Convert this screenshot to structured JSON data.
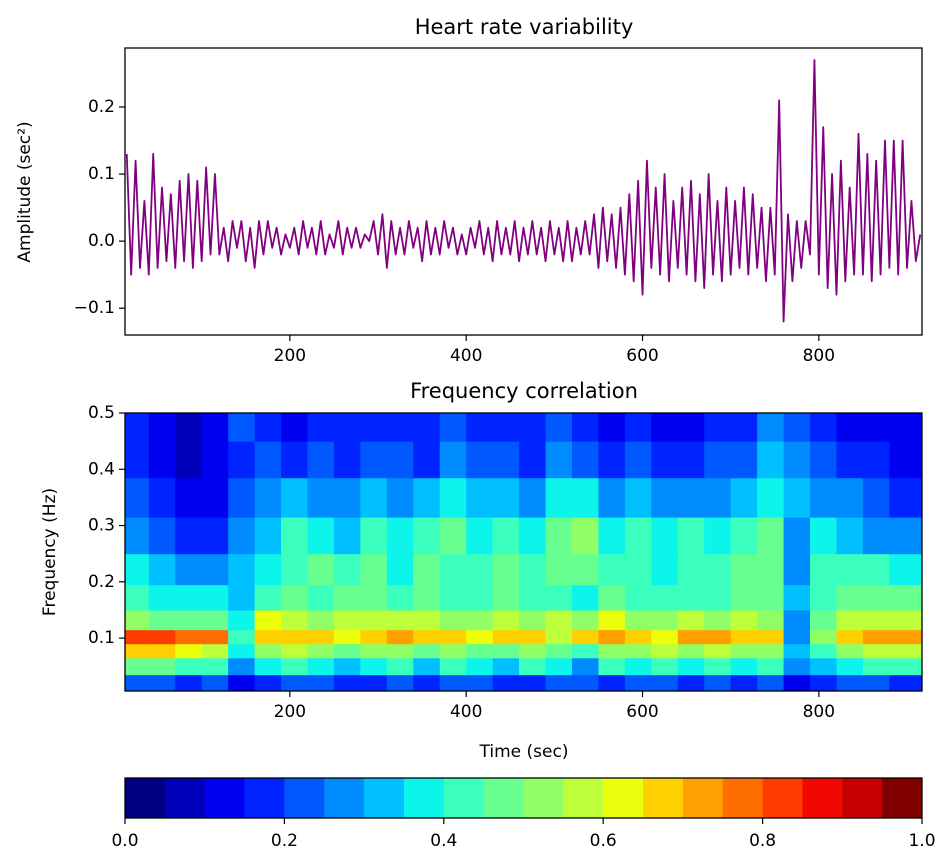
{
  "chart_data": [
    {
      "type": "line",
      "title": "Heart rate variability",
      "y_label": "Amplitude (sec²)",
      "color": "#800080",
      "xlim": [
        13,
        917
      ],
      "ylim": [
        -0.14,
        0.288
      ],
      "xticks": [
        200,
        400,
        600,
        800
      ],
      "yticks": [
        {
          "value": -0.1,
          "label": "−0.1"
        },
        {
          "value": 0,
          "label": "0.0"
        },
        0.1,
        0.2
      ],
      "x": [
        15,
        20,
        25,
        30,
        35,
        40,
        45,
        50,
        55,
        60,
        65,
        70,
        75,
        80,
        85,
        90,
        95,
        100,
        105,
        110,
        115,
        120,
        125,
        130,
        135,
        140,
        145,
        150,
        155,
        160,
        165,
        170,
        175,
        180,
        185,
        190,
        195,
        200,
        205,
        210,
        215,
        220,
        225,
        230,
        235,
        240,
        245,
        250,
        255,
        260,
        265,
        270,
        275,
        280,
        285,
        290,
        295,
        300,
        305,
        310,
        315,
        320,
        325,
        330,
        335,
        340,
        345,
        350,
        355,
        360,
        365,
        370,
        375,
        380,
        385,
        390,
        395,
        400,
        405,
        410,
        415,
        420,
        425,
        430,
        435,
        440,
        445,
        450,
        455,
        460,
        465,
        470,
        475,
        480,
        485,
        490,
        495,
        500,
        505,
        510,
        515,
        520,
        525,
        530,
        535,
        540,
        545,
        550,
        555,
        560,
        565,
        570,
        575,
        580,
        585,
        590,
        595,
        600,
        605,
        610,
        615,
        620,
        625,
        630,
        635,
        640,
        645,
        650,
        655,
        660,
        665,
        670,
        675,
        680,
        685,
        690,
        695,
        700,
        705,
        710,
        715,
        720,
        725,
        730,
        735,
        740,
        745,
        750,
        755,
        760,
        765,
        770,
        775,
        780,
        785,
        790,
        795,
        800,
        805,
        810,
        815,
        820,
        825,
        830,
        835,
        840,
        845,
        850,
        855,
        860,
        865,
        870,
        875,
        880,
        885,
        890,
        895,
        900,
        905,
        910,
        915
      ],
      "values": [
        0.13,
        -0.05,
        0.12,
        -0.04,
        0.06,
        -0.05,
        0.13,
        -0.04,
        0.08,
        -0.03,
        0.07,
        -0.04,
        0.09,
        -0.03,
        0.1,
        -0.04,
        0.09,
        -0.03,
        0.11,
        -0.02,
        0.1,
        -0.02,
        0.02,
        -0.03,
        0.03,
        -0.01,
        0.03,
        -0.03,
        0.02,
        -0.04,
        0.03,
        -0.02,
        0.03,
        -0.01,
        0.02,
        -0.02,
        0.01,
        -0.01,
        0.02,
        -0.02,
        0.03,
        -0.01,
        0.02,
        -0.02,
        0.03,
        -0.02,
        0.01,
        -0.01,
        0.03,
        -0.02,
        0.02,
        -0.01,
        0.02,
        -0.01,
        0.01,
        0.0,
        0.03,
        -0.02,
        0.04,
        -0.04,
        0.03,
        -0.02,
        0.02,
        -0.02,
        0.03,
        -0.01,
        0.02,
        -0.03,
        0.03,
        -0.02,
        0.02,
        -0.02,
        0.03,
        -0.01,
        0.02,
        -0.02,
        0.01,
        -0.02,
        0.02,
        -0.01,
        0.03,
        -0.02,
        0.02,
        -0.03,
        0.03,
        -0.02,
        0.02,
        -0.02,
        0.03,
        -0.03,
        0.02,
        -0.02,
        0.03,
        -0.02,
        0.02,
        -0.03,
        0.03,
        -0.02,
        0.02,
        -0.03,
        0.03,
        -0.03,
        0.02,
        -0.02,
        0.03,
        -0.02,
        0.04,
        -0.04,
        0.05,
        -0.03,
        0.04,
        -0.04,
        0.05,
        -0.05,
        0.07,
        -0.06,
        0.09,
        -0.08,
        0.12,
        -0.04,
        0.08,
        -0.05,
        0.1,
        -0.06,
        0.06,
        -0.04,
        0.08,
        -0.05,
        0.09,
        -0.06,
        0.07,
        -0.07,
        0.1,
        -0.05,
        0.06,
        -0.06,
        0.08,
        -0.05,
        0.06,
        -0.04,
        0.08,
        -0.05,
        0.07,
        -0.04,
        0.05,
        -0.06,
        0.05,
        -0.05,
        0.21,
        -0.12,
        0.04,
        -0.06,
        0.03,
        -0.04,
        0.03,
        -0.02,
        0.27,
        -0.05,
        0.17,
        -0.07,
        0.1,
        -0.08,
        0.12,
        -0.06,
        0.08,
        -0.05,
        0.16,
        -0.05,
        0.13,
        -0.06,
        0.12,
        -0.05,
        0.15,
        -0.04,
        0.15,
        -0.05,
        0.15,
        -0.04,
        0.06,
        -0.03,
        0.01
      ]
    },
    {
      "type": "contour",
      "title": "Frequency correlation",
      "x_label": "Time (sec)",
      "y_label": "Frequency (Hz)",
      "xlim": [
        13,
        917
      ],
      "ylim": [
        0.006,
        0.5
      ],
      "xticks": [
        200,
        400,
        600,
        800
      ],
      "yticks": [
        0.1,
        0.2,
        0.3,
        0.4,
        0.5
      ],
      "x": [
        25,
        55,
        85,
        115,
        145,
        175,
        205,
        235,
        265,
        295,
        325,
        355,
        385,
        415,
        445,
        475,
        505,
        535,
        565,
        595,
        625,
        655,
        685,
        715,
        745,
        775,
        805,
        835,
        865,
        895
      ],
      "y": [
        0.02,
        0.05,
        0.08,
        0.1,
        0.13,
        0.17,
        0.22,
        0.28,
        0.35,
        0.42,
        0.48
      ],
      "z": [
        [
          0.25,
          0.22,
          0.2,
          0.25,
          0.15,
          0.2,
          0.25,
          0.22,
          0.18,
          0.2,
          0.25,
          0.2,
          0.22,
          0.25,
          0.2,
          0.18,
          0.22,
          0.25,
          0.2,
          0.22,
          0.25,
          0.2,
          0.22,
          0.2,
          0.25,
          0.15,
          0.2,
          0.22,
          0.25,
          0.2
        ],
        [
          0.5,
          0.5,
          0.45,
          0.45,
          0.3,
          0.4,
          0.45,
          0.4,
          0.35,
          0.4,
          0.45,
          0.35,
          0.45,
          0.4,
          0.35,
          0.45,
          0.4,
          0.3,
          0.45,
          0.4,
          0.45,
          0.4,
          0.45,
          0.4,
          0.45,
          0.3,
          0.35,
          0.4,
          0.45,
          0.45
        ],
        [
          0.7,
          0.7,
          0.65,
          0.6,
          0.4,
          0.55,
          0.6,
          0.55,
          0.5,
          0.55,
          0.55,
          0.5,
          0.55,
          0.5,
          0.5,
          0.55,
          0.5,
          0.45,
          0.55,
          0.55,
          0.6,
          0.55,
          0.6,
          0.55,
          0.55,
          0.35,
          0.45,
          0.55,
          0.6,
          0.6
        ],
        [
          0.85,
          0.85,
          0.8,
          0.8,
          0.45,
          0.7,
          0.7,
          0.7,
          0.65,
          0.7,
          0.75,
          0.7,
          0.7,
          0.65,
          0.7,
          0.7,
          0.6,
          0.7,
          0.75,
          0.7,
          0.65,
          0.75,
          0.75,
          0.7,
          0.7,
          0.3,
          0.55,
          0.7,
          0.75,
          0.75
        ],
        [
          0.55,
          0.5,
          0.5,
          0.5,
          0.4,
          0.65,
          0.6,
          0.55,
          0.6,
          0.6,
          0.6,
          0.6,
          0.55,
          0.55,
          0.6,
          0.55,
          0.6,
          0.55,
          0.65,
          0.55,
          0.55,
          0.6,
          0.55,
          0.6,
          0.55,
          0.3,
          0.5,
          0.6,
          0.6,
          0.6
        ],
        [
          0.45,
          0.4,
          0.4,
          0.4,
          0.35,
          0.45,
          0.5,
          0.45,
          0.5,
          0.5,
          0.45,
          0.5,
          0.45,
          0.45,
          0.5,
          0.45,
          0.45,
          0.4,
          0.5,
          0.45,
          0.45,
          0.45,
          0.45,
          0.5,
          0.5,
          0.35,
          0.45,
          0.5,
          0.5,
          0.5
        ],
        [
          0.4,
          0.35,
          0.3,
          0.3,
          0.35,
          0.4,
          0.45,
          0.5,
          0.45,
          0.5,
          0.4,
          0.5,
          0.45,
          0.45,
          0.5,
          0.45,
          0.5,
          0.5,
          0.45,
          0.45,
          0.4,
          0.45,
          0.45,
          0.5,
          0.5,
          0.3,
          0.45,
          0.45,
          0.45,
          0.4
        ],
        [
          0.3,
          0.25,
          0.2,
          0.2,
          0.3,
          0.35,
          0.45,
          0.4,
          0.35,
          0.45,
          0.4,
          0.45,
          0.5,
          0.4,
          0.45,
          0.4,
          0.5,
          0.55,
          0.4,
          0.45,
          0.4,
          0.45,
          0.4,
          0.45,
          0.5,
          0.3,
          0.4,
          0.35,
          0.3,
          0.3
        ],
        [
          0.25,
          0.2,
          0.15,
          0.15,
          0.25,
          0.3,
          0.35,
          0.3,
          0.3,
          0.35,
          0.3,
          0.35,
          0.4,
          0.35,
          0.35,
          0.3,
          0.4,
          0.4,
          0.3,
          0.35,
          0.3,
          0.3,
          0.3,
          0.35,
          0.4,
          0.35,
          0.3,
          0.3,
          0.25,
          0.2
        ],
        [
          0.2,
          0.15,
          0.1,
          0.12,
          0.2,
          0.25,
          0.2,
          0.25,
          0.2,
          0.25,
          0.25,
          0.2,
          0.3,
          0.25,
          0.25,
          0.2,
          0.3,
          0.25,
          0.2,
          0.25,
          0.2,
          0.2,
          0.25,
          0.25,
          0.35,
          0.3,
          0.25,
          0.2,
          0.2,
          0.15
        ],
        [
          0.2,
          0.15,
          0.1,
          0.15,
          0.25,
          0.2,
          0.15,
          0.2,
          0.2,
          0.2,
          0.2,
          0.2,
          0.25,
          0.2,
          0.2,
          0.2,
          0.25,
          0.2,
          0.15,
          0.2,
          0.15,
          0.15,
          0.2,
          0.2,
          0.3,
          0.25,
          0.2,
          0.15,
          0.15,
          0.15
        ]
      ],
      "levels": [
        0,
        0.05,
        0.1,
        0.15,
        0.2,
        0.25,
        0.3,
        0.35,
        0.4,
        0.45,
        0.5,
        0.55,
        0.6,
        0.65,
        0.7,
        0.75,
        0.8,
        0.85,
        0.9,
        0.95,
        1
      ],
      "colors": [
        "#000080",
        "#0000b8",
        "#0000f1",
        "#0024ff",
        "#0058ff",
        "#008cff",
        "#00c0ff",
        "#0df4eb",
        "#3affbd",
        "#66ff90",
        "#90ff66",
        "#bdff3a",
        "#ebff0d",
        "#ffd000",
        "#ff9f00",
        "#ff6e00",
        "#ff3d00",
        "#f10800",
        "#c60000",
        "#800000"
      ],
      "colorbar_ticks": [
        {
          "value": 0,
          "label": "0.0"
        },
        {
          "value": 0.2,
          "label": "0.2"
        },
        {
          "value": 0.4,
          "label": "0.4"
        },
        {
          "value": 0.6,
          "label": "0.6"
        },
        {
          "value": 0.8,
          "label": "0.8"
        },
        {
          "value": 1,
          "label": "1.0"
        }
      ]
    }
  ]
}
